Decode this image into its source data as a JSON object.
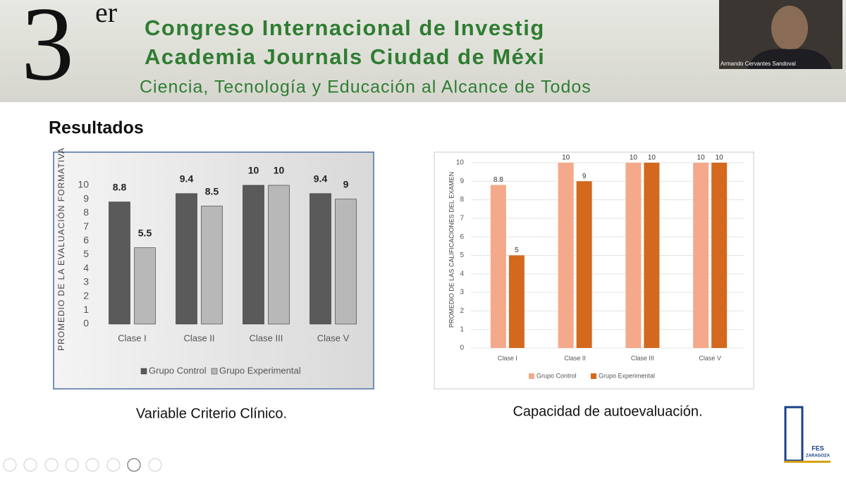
{
  "banner": {
    "number": "3",
    "superscript": "er",
    "line1": "Congreso Internacional de Investig",
    "line2": "Academia Journals Ciudad de Méxi",
    "line3": "Ciencia, Tecnología y Educación al Alcance de Todos"
  },
  "participant": "Armando Cervantes Sandoval",
  "heading": "Resultados",
  "chart_data": [
    {
      "type": "bar",
      "ylabel": "PROMEDIO DE LA EVALUACIÓN FORMATIVA",
      "categories": [
        "Clase I",
        "Clase II",
        "Clase III",
        "Clase V"
      ],
      "series": [
        {
          "name": "Grupo Control",
          "color": "#5a5a5a",
          "values": [
            8.8,
            9.4,
            10,
            9.4
          ]
        },
        {
          "name": "Grupo Experimental",
          "color": "#b8b8b8",
          "values": [
            5.5,
            8.5,
            10,
            9
          ]
        }
      ],
      "ylim": [
        0,
        10
      ],
      "yticks": [
        0,
        1,
        2,
        3,
        4,
        5,
        6,
        7,
        8,
        9,
        10
      ],
      "grid": false,
      "legend": "bottom"
    },
    {
      "type": "bar",
      "ylabel": "PROMEDIO DE LAS CALIFICACIONES DEL EXAMEN",
      "categories": [
        "Clase I",
        "Clase II",
        "Clase III",
        "Clase V"
      ],
      "series": [
        {
          "name": "Grupo Control",
          "color": "#f4a98a",
          "values": [
            8.8,
            10,
            10,
            10
          ]
        },
        {
          "name": "Grupo Experimental",
          "color": "#d2691e",
          "values": [
            5,
            9,
            10,
            10
          ]
        }
      ],
      "ylim": [
        0,
        10
      ],
      "yticks": [
        0,
        1,
        2,
        3,
        4,
        5,
        6,
        7,
        8,
        9,
        10
      ],
      "grid": true,
      "legend": "bottom"
    }
  ],
  "captions": [
    "Variable Criterio Clínico.",
    "Capacidad de autoevaluación."
  ],
  "logo": {
    "line1": "FES",
    "line2": "ZARAGOZA"
  }
}
